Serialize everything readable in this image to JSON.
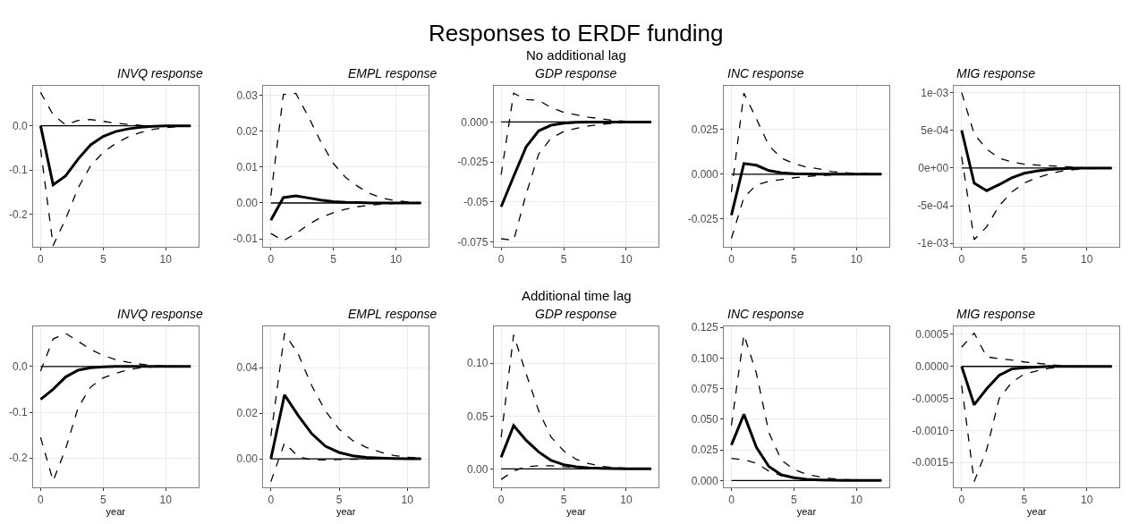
{
  "chart_data": [
    {
      "type": "line",
      "title": "INVQ response",
      "annotations": [
        "Responses to ERDF funding",
        "No additional lag"
      ],
      "x": [
        0,
        1,
        2,
        3,
        4,
        5,
        6,
        7,
        8,
        9,
        10,
        11,
        12
      ],
      "xlim": [
        -0.6,
        12.6
      ],
      "xticks": [
        0,
        5,
        10
      ],
      "ylim": [
        -0.272,
        0.09
      ],
      "yticks": [
        {
          "value": -0.2,
          "label": "-0.2"
        },
        {
          "value": -0.1,
          "label": "-0.1"
        },
        {
          "value": 0,
          "label": "0.0"
        }
      ],
      "grid": true,
      "ref_lines": [
        {
          "axis": "y",
          "value": 0,
          "color": "#000000"
        }
      ],
      "series": [
        {
          "color": "#000000",
          "line_style": "dashed",
          "values": [
            -0.053,
            -0.27,
            -0.21,
            -0.14,
            -0.09,
            -0.06,
            -0.04,
            -0.025,
            -0.015,
            -0.008,
            -0.004,
            -0.002,
            -0.001
          ]
        },
        {
          "color": "#000000",
          "line_style": "dashed",
          "values": [
            0.075,
            0.025,
            0.002,
            0.012,
            0.014,
            0.01,
            0.006,
            0.003,
            0.001,
            0,
            0,
            0,
            0
          ]
        },
        {
          "color": "#000000",
          "line_style": "solid",
          "values": [
            0,
            -0.133,
            -0.113,
            -0.075,
            -0.043,
            -0.024,
            -0.013,
            -0.007,
            -0.003,
            -0.001,
            0,
            0,
            0
          ]
        }
      ]
    },
    {
      "type": "line",
      "title": "EMPL response",
      "x": [
        0,
        1,
        2,
        3,
        4,
        5,
        6,
        7,
        8,
        9,
        10,
        11,
        12
      ],
      "xlim": [
        -0.6,
        12.6
      ],
      "xticks": [
        0,
        5,
        10
      ],
      "ylim": [
        -0.0121,
        0.0326
      ],
      "yticks": [
        {
          "value": -0.01,
          "label": "-0.01"
        },
        {
          "value": 0,
          "label": "0.00"
        },
        0.01,
        0.02,
        0.03
      ],
      "grid": true,
      "ref_lines": [
        {
          "axis": "y",
          "value": 0,
          "color": "#000000"
        }
      ],
      "series": [
        {
          "color": "#000000",
          "line_style": "dashed",
          "values": [
            -0.0085,
            -0.0105,
            -0.0085,
            -0.006,
            -0.004,
            -0.0027,
            -0.0017,
            -0.001,
            -0.0006,
            -0.0003,
            -0.0001,
            0,
            0
          ]
        },
        {
          "color": "#000000",
          "line_style": "dashed",
          "values": [
            0.002,
            0.0302,
            0.0305,
            0.024,
            0.017,
            0.011,
            0.007,
            0.0045,
            0.0025,
            0.0013,
            0.0006,
            0.0003,
            0.0001
          ]
        },
        {
          "color": "#000000",
          "line_style": "solid",
          "values": [
            -0.0048,
            0.0015,
            0.002,
            0.0014,
            0.0008,
            0.0004,
            0.0002,
            0.0001,
            0,
            0,
            0,
            0,
            0
          ]
        }
      ]
    },
    {
      "type": "line",
      "title": "GDP response",
      "x": [
        0,
        1,
        2,
        3,
        4,
        5,
        6,
        7,
        8,
        9,
        10,
        11,
        12
      ],
      "xlim": [
        -0.6,
        12.6
      ],
      "xticks": [
        0,
        5,
        10
      ],
      "ylim": [
        -0.0778,
        0.0226
      ],
      "yticks": [
        -0.075,
        -0.05,
        -0.025,
        {
          "value": 0,
          "label": "0.000"
        }
      ],
      "grid": true,
      "ref_lines": [
        {
          "axis": "y",
          "value": 0,
          "color": "#000000"
        }
      ],
      "series": [
        {
          "color": "#000000",
          "line_style": "dashed",
          "values": [
            -0.073,
            -0.074,
            -0.045,
            -0.02,
            -0.01,
            -0.006,
            -0.004,
            -0.0025,
            -0.0015,
            -0.0008,
            -0.0004,
            -0.0002,
            -0.0001
          ]
        },
        {
          "color": "#000000",
          "line_style": "dashed",
          "values": [
            -0.033,
            0.018,
            0.014,
            0.0135,
            0.009,
            0.006,
            0.0045,
            0.003,
            0.002,
            0.001,
            0.0005,
            0.0002,
            0.0001
          ]
        },
        {
          "color": "#000000",
          "line_style": "solid",
          "values": [
            -0.053,
            -0.034,
            -0.0155,
            -0.0055,
            -0.002,
            -0.0007,
            -0.0002,
            0,
            0,
            0,
            0,
            0,
            0
          ]
        }
      ]
    },
    {
      "type": "line",
      "title": "INC response",
      "x": [
        0,
        1,
        2,
        3,
        4,
        5,
        6,
        7,
        8,
        9,
        10,
        11,
        12
      ],
      "xlim": [
        -0.6,
        12.6
      ],
      "xticks": [
        0,
        5,
        10
      ],
      "ylim": [
        -0.0405,
        0.0495
      ],
      "yticks": [
        -0.025,
        {
          "value": 0,
          "label": "0.000"
        },
        0.025
      ],
      "grid": true,
      "ref_lines": [
        {
          "axis": "y",
          "value": 0,
          "color": "#000000"
        }
      ],
      "series": [
        {
          "color": "#000000",
          "line_style": "dashed",
          "values": [
            -0.036,
            -0.013,
            -0.006,
            -0.004,
            -0.003,
            -0.002,
            -0.0013,
            -0.0008,
            -0.0004,
            -0.0002,
            0,
            0,
            0
          ]
        },
        {
          "color": "#000000",
          "line_style": "dashed",
          "values": [
            -0.01,
            0.0454,
            0.031,
            0.016,
            0.009,
            0.006,
            0.004,
            0.003,
            0.0015,
            0.0008,
            0.0004,
            0.0002,
            0.0001
          ]
        },
        {
          "color": "#000000",
          "line_style": "solid",
          "values": [
            -0.023,
            0.006,
            0.005,
            0.002,
            0.0008,
            0.0003,
            0.0001,
            0,
            0,
            0,
            0,
            0,
            0
          ]
        }
      ]
    },
    {
      "type": "line",
      "title": "MIG response",
      "x": [
        0,
        1,
        2,
        3,
        4,
        5,
        6,
        7,
        8,
        9,
        10,
        11,
        12
      ],
      "xlim": [
        -0.6,
        12.6
      ],
      "xticks": [
        0,
        5,
        10
      ],
      "ylim": [
        -0.00104,
        0.00109
      ],
      "yticks": [
        {
          "value": -0.001,
          "label": "-1e-03"
        },
        {
          "value": -0.0005,
          "label": "-5e-04"
        },
        {
          "value": 0,
          "label": "0e+00"
        },
        {
          "value": 0.0005,
          "label": "5e-04"
        },
        {
          "value": 0.001,
          "label": "1e-03"
        }
      ],
      "grid": true,
      "ref_lines": [
        {
          "axis": "y",
          "value": 0,
          "color": "#000000"
        }
      ],
      "series": [
        {
          "color": "#000000",
          "line_style": "dashed",
          "values": [
            0.00015,
            -0.00095,
            -0.00078,
            -0.0005,
            -0.00032,
            -0.0002,
            -0.00013,
            -8e-05,
            -4e-05,
            -2e-05,
            -1e-05,
            0,
            0
          ]
        },
        {
          "color": "#000000",
          "line_style": "dashed",
          "values": [
            0.001,
            0.00045,
            0.00025,
            0.00013,
            8e-05,
            5e-05,
            4e-05,
            3e-05,
            2e-05,
            1e-05,
            0,
            0,
            0
          ]
        },
        {
          "color": "#000000",
          "line_style": "solid",
          "values": [
            0.0005,
            -0.0002,
            -0.0003,
            -0.00022,
            -0.00013,
            -7e-05,
            -4e-05,
            -2e-05,
            -1e-05,
            0,
            0,
            0,
            0
          ]
        }
      ]
    },
    {
      "type": "line",
      "title": "INVQ response",
      "xlabel": "year",
      "annotations": [
        "Additional time lag"
      ],
      "x": [
        0,
        1,
        2,
        3,
        4,
        5,
        6,
        7,
        8,
        9,
        10,
        11,
        12
      ],
      "xlim": [
        -0.6,
        12.6
      ],
      "xticks": [
        0,
        5,
        10
      ],
      "ylim": [
        -0.264,
        0.0867
      ],
      "yticks": [
        {
          "value": -0.2,
          "label": "-0.2"
        },
        {
          "value": -0.1,
          "label": "-0.1"
        },
        {
          "value": 0,
          "label": "0.0"
        }
      ],
      "grid": true,
      "ref_lines": [
        {
          "axis": "y",
          "value": 0,
          "color": "#000000"
        }
      ],
      "series": [
        {
          "color": "#000000",
          "line_style": "dashed",
          "values": [
            -0.155,
            -0.25,
            -0.18,
            -0.09,
            -0.045,
            -0.025,
            -0.015,
            -0.007,
            -0.003,
            -0.001,
            0,
            0,
            0
          ]
        },
        {
          "color": "#000000",
          "line_style": "dashed",
          "values": [
            -0.01,
            0.06,
            0.072,
            0.055,
            0.037,
            0.024,
            0.015,
            0.009,
            0.005,
            0.002,
            0.001,
            0,
            0
          ]
        },
        {
          "color": "#000000",
          "line_style": "solid",
          "values": [
            -0.072,
            -0.05,
            -0.023,
            -0.008,
            -0.003,
            -0.001,
            0,
            0,
            0,
            0,
            0,
            0,
            0
          ]
        }
      ]
    },
    {
      "type": "line",
      "title": "EMPL response",
      "xlabel": "year",
      "x": [
        0,
        1,
        2,
        3,
        4,
        5,
        6,
        7,
        8,
        9,
        10,
        11
      ],
      "xlim": [
        -0.55,
        11.55
      ],
      "xticks": [
        0,
        5,
        10
      ],
      "ylim": [
        -0.0125,
        0.0579
      ],
      "yticks": [
        {
          "value": 0,
          "label": "0.00"
        },
        {
          "value": 0.02,
          "label": "0.02"
        },
        {
          "value": 0.04,
          "label": "0.04"
        }
      ],
      "grid": true,
      "ref_lines": [
        {
          "axis": "y",
          "value": 0,
          "color": "#000000"
        }
      ],
      "series": [
        {
          "color": "#000000",
          "line_style": "dashed",
          "values": [
            -0.01,
            0.007,
            0.001,
            -0.0005,
            -0.0005,
            -0.0003,
            -0.0002,
            -0.0001,
            0,
            0,
            0,
            0
          ]
        },
        {
          "color": "#000000",
          "line_style": "dashed",
          "values": [
            0.01,
            0.055,
            0.046,
            0.032,
            0.021,
            0.013,
            0.008,
            0.005,
            0.003,
            0.0015,
            0.0007,
            0.0003
          ]
        },
        {
          "color": "#000000",
          "line_style": "solid",
          "values": [
            0,
            0.028,
            0.019,
            0.011,
            0.0055,
            0.0028,
            0.0013,
            0.0006,
            0.0003,
            0.0001,
            0,
            0
          ]
        }
      ]
    },
    {
      "type": "line",
      "title": "GDP response",
      "xlabel": "year",
      "x": [
        0,
        1,
        2,
        3,
        4,
        5,
        6,
        7,
        8,
        9,
        10,
        11,
        12
      ],
      "xlim": [
        -0.6,
        12.6
      ],
      "xticks": [
        0,
        5,
        10
      ],
      "ylim": [
        -0.0175,
        0.1346
      ],
      "yticks": [
        {
          "value": 0,
          "label": "0.00"
        },
        0.05,
        {
          "value": 0.1,
          "label": "0.10"
        }
      ],
      "grid": true,
      "ref_lines": [
        {
          "axis": "y",
          "value": 0,
          "color": "#000000"
        }
      ],
      "series": [
        {
          "color": "#000000",
          "line_style": "dashed",
          "values": [
            -0.01,
            -0.002,
            0.002,
            0.003,
            0.003,
            0.002,
            0.0015,
            0.001,
            0.0005,
            0.0002,
            0,
            0,
            0
          ]
        },
        {
          "color": "#000000",
          "line_style": "dashed",
          "values": [
            0.03,
            0.127,
            0.09,
            0.055,
            0.03,
            0.017,
            0.009,
            0.005,
            0.0025,
            0.0012,
            0.0005,
            0.0002,
            0.0001
          ]
        },
        {
          "color": "#000000",
          "line_style": "solid",
          "values": [
            0.011,
            0.041,
            0.027,
            0.016,
            0.008,
            0.004,
            0.002,
            0.001,
            0.0005,
            0.0002,
            0,
            0,
            0
          ]
        }
      ]
    },
    {
      "type": "line",
      "title": "INC response",
      "xlabel": "year",
      "x": [
        0,
        1,
        2,
        3,
        4,
        5,
        6,
        7,
        8,
        9,
        10,
        11,
        12
      ],
      "xlim": [
        -0.6,
        12.6
      ],
      "xticks": [
        0,
        5,
        10
      ],
      "ylim": [
        -0.0056,
        0.1255
      ],
      "yticks": [
        {
          "value": 0,
          "label": "0.000"
        },
        0.025,
        {
          "value": 0.05,
          "label": "0.050"
        },
        0.075,
        {
          "value": 0.1,
          "label": "0.100"
        },
        0.125
      ],
      "grid": true,
      "ref_lines": [
        {
          "axis": "y",
          "value": 0,
          "color": "#000000"
        }
      ],
      "series": [
        {
          "color": "#000000",
          "line_style": "dashed",
          "values": [
            0.018,
            0.017,
            0.014,
            0.0076,
            0.004,
            0.002,
            0.001,
            0.0005,
            0.0002,
            0,
            0,
            0,
            0
          ]
        },
        {
          "color": "#000000",
          "line_style": "dashed",
          "values": [
            0.045,
            0.119,
            0.0875,
            0.039,
            0.0165,
            0.009,
            0.005,
            0.003,
            0.0015,
            0.0008,
            0.0004,
            0.0002,
            0.0001
          ]
        },
        {
          "color": "#000000",
          "line_style": "solid",
          "values": [
            0.029,
            0.054,
            0.027,
            0.0114,
            0.0046,
            0.0023,
            0.001,
            0.0005,
            0.0002,
            0,
            0,
            0,
            0
          ]
        }
      ]
    },
    {
      "type": "line",
      "title": "MIG response",
      "xlabel": "year",
      "x": [
        0,
        1,
        2,
        3,
        4,
        5,
        6,
        7,
        8,
        9,
        10,
        11,
        12
      ],
      "xlim": [
        -0.6,
        12.6
      ],
      "xticks": [
        0,
        5,
        10
      ],
      "ylim": [
        -0.00189,
        0.00062
      ],
      "yticks": [
        {
          "value": -0.0015,
          "label": "-0.0015"
        },
        {
          "value": -0.001,
          "label": "-0.0010"
        },
        {
          "value": -0.0005,
          "label": "-0.0005"
        },
        {
          "value": 0,
          "label": "0.0000"
        },
        0.0005
      ],
      "grid": true,
      "ref_lines": [
        {
          "axis": "y",
          "value": 0,
          "color": "#000000"
        }
      ],
      "series": [
        {
          "color": "#000000",
          "line_style": "dashed",
          "values": [
            -0.0003,
            -0.0018,
            -0.0013,
            -0.0005,
            -0.00025,
            -0.00012,
            -7e-05,
            -3e-05,
            -1e-05,
            0,
            0,
            0,
            0
          ]
        },
        {
          "color": "#000000",
          "line_style": "dashed",
          "values": [
            0.0003,
            0.00052,
            0.00015,
            0.00012,
            0.0001,
            7e-05,
            5e-05,
            3e-05,
            1e-05,
            0,
            0,
            0,
            0
          ]
        },
        {
          "color": "#000000",
          "line_style": "solid",
          "values": [
            0,
            -0.0006,
            -0.00035,
            -0.00014,
            -4e-05,
            -2e-05,
            -1e-05,
            0,
            0,
            0,
            0,
            0,
            0
          ]
        }
      ]
    }
  ]
}
